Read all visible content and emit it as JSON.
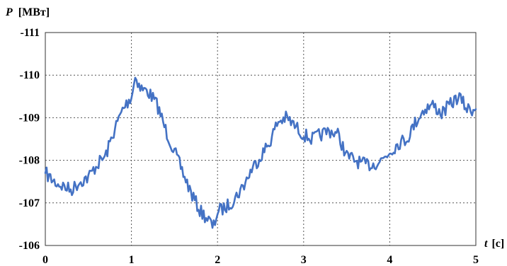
{
  "chart_data": {
    "type": "line",
    "y_axis": {
      "symbol": "P",
      "unit": "[МВт]",
      "ylim": [
        -111,
        -106
      ],
      "ticks": [
        "-111",
        "-110",
        "-109",
        "-108",
        "-107",
        "-106"
      ]
    },
    "x_axis": {
      "symbol": "t",
      "unit": "[с]",
      "xlim": [
        0,
        5
      ],
      "ticks": [
        "0",
        "1",
        "2",
        "3",
        "4",
        "5"
      ]
    },
    "y_inverted": true,
    "grid": true,
    "line_color": "#4472c4",
    "series": [
      {
        "x": [
          0,
          0.1,
          0.2,
          0.3,
          0.4,
          0.5,
          0.6,
          0.7,
          0.8,
          0.9,
          1.0,
          1.05,
          1.1,
          1.2,
          1.3,
          1.4,
          1.5,
          1.6,
          1.7,
          1.8,
          1.9,
          1.95,
          2.0,
          2.1,
          2.2,
          2.3,
          2.4,
          2.5,
          2.6,
          2.7,
          2.8,
          2.9,
          3.0,
          3.1,
          3.2,
          3.3,
          3.4,
          3.5,
          3.6,
          3.7,
          3.8,
          3.9,
          4.0,
          4.1,
          4.2,
          4.3,
          4.4,
          4.5,
          4.6,
          4.7,
          4.8,
          4.9,
          5.0
        ],
        "y": [
          -107.7,
          -107.5,
          -107.4,
          -107.3,
          -107.5,
          -107.6,
          -107.9,
          -108.1,
          -108.7,
          -109.2,
          -109.5,
          -110.0,
          -109.7,
          -109.6,
          -109.3,
          -108.7,
          -108.2,
          -107.7,
          -107.2,
          -106.8,
          -106.6,
          -106.4,
          -106.8,
          -106.9,
          -107.1,
          -107.4,
          -107.8,
          -108.1,
          -108.4,
          -108.9,
          -109.0,
          -108.8,
          -108.6,
          -108.5,
          -108.6,
          -108.7,
          -108.6,
          -108.1,
          -108.0,
          -107.9,
          -107.9,
          -108.0,
          -108.2,
          -108.4,
          -108.5,
          -108.9,
          -109.2,
          -109.3,
          -109.1,
          -109.3,
          -109.5,
          -109.2,
          -109.2
        ]
      }
    ]
  }
}
